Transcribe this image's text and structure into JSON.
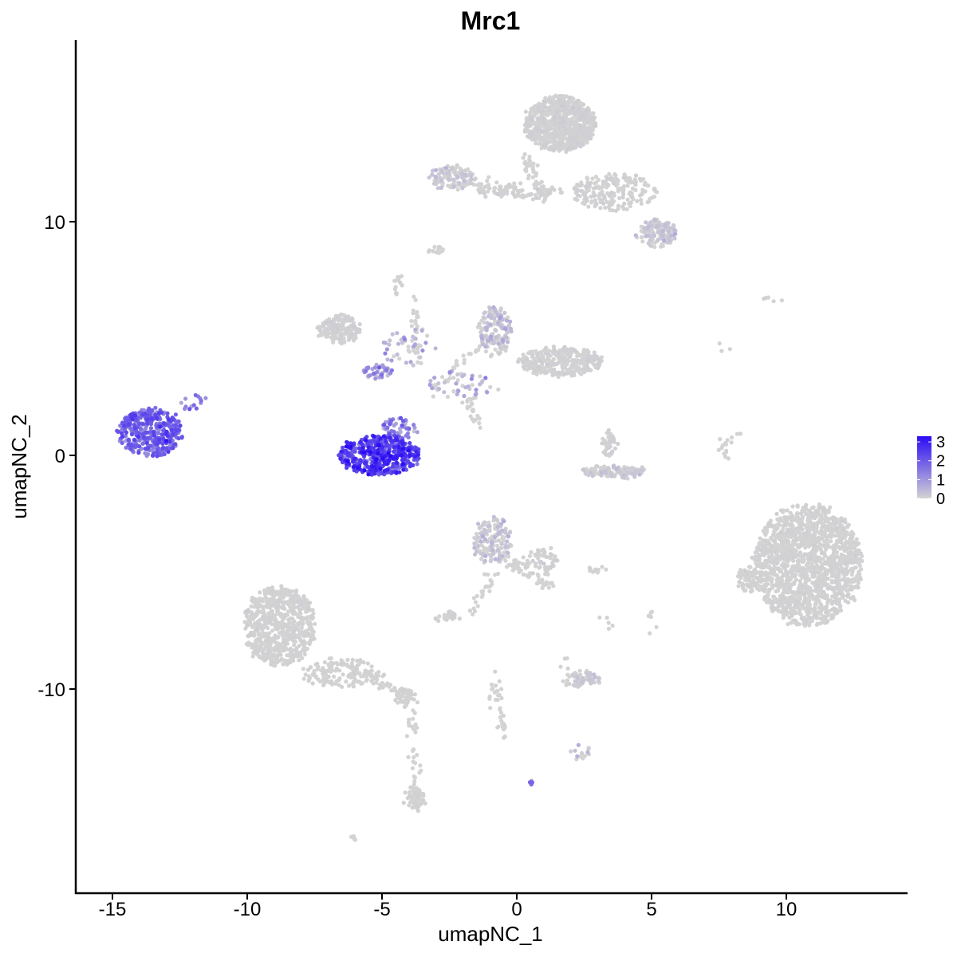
{
  "chart_data": {
    "type": "scatter",
    "title": "Mrc1",
    "xlabel": "umapNC_1",
    "ylabel": "umapNC_2",
    "xlim": [
      -16.3,
      14.6
    ],
    "ylim": [
      -17.9,
      17.5
    ],
    "xticks": [
      -15,
      -10,
      -5,
      0,
      5,
      10
    ],
    "xtick_labels": [
      "-15",
      "-10",
      "-5",
      "0",
      "5",
      "10"
    ],
    "yticks": [
      -10,
      0,
      10
    ],
    "ytick_labels": [
      "-10",
      "0",
      "10"
    ],
    "grid": false,
    "color_scale": {
      "low_color": "#d3d3d3",
      "high_color": "#2b0cf5",
      "min": 0,
      "max": 3.3,
      "ticks": [
        0,
        1,
        2,
        3
      ],
      "tick_labels": [
        "0",
        "1",
        "2",
        "3"
      ],
      "legend_position": "right"
    },
    "clusters": [
      {
        "cx": -13.6,
        "cy": 1.0,
        "rx": 1.2,
        "ry": 1.0,
        "n": 420,
        "expr_mean": 1.7,
        "expr_sd": 0.45
      },
      {
        "cx": -12.0,
        "cy": 2.3,
        "rx": 0.5,
        "ry": 0.4,
        "n": 14,
        "expr_mean": 1.3,
        "expr_sd": 0.4
      },
      {
        "cx": -5.1,
        "cy": 0.0,
        "rx": 1.5,
        "ry": 0.85,
        "n": 460,
        "expr_mean": 2.3,
        "expr_sd": 0.5
      },
      {
        "cx": -4.4,
        "cy": 1.1,
        "rx": 0.7,
        "ry": 0.5,
        "n": 60,
        "expr_mean": 1.3,
        "expr_sd": 0.5
      },
      {
        "cx": 1.6,
        "cy": 14.2,
        "rx": 1.3,
        "ry": 1.2,
        "n": 800,
        "expr_mean": 0,
        "expr_sd": 0.05
      },
      {
        "cx": 3.6,
        "cy": 11.3,
        "rx": 1.6,
        "ry": 0.8,
        "n": 200,
        "expr_mean": 0,
        "expr_sd": 0.05
      },
      {
        "cx": 5.2,
        "cy": 9.5,
        "rx": 0.7,
        "ry": 0.6,
        "n": 140,
        "expr_mean": 0.05,
        "expr_sd": 0.2
      },
      {
        "cx": -2.4,
        "cy": 11.9,
        "rx": 0.8,
        "ry": 0.5,
        "n": 110,
        "expr_mean": 0.05,
        "expr_sd": 0.2
      },
      {
        "cx": 0.2,
        "cy": 11.3,
        "rx": 1.7,
        "ry": 0.3,
        "n": 70,
        "expr_mean": 0,
        "expr_sd": 0.05
      },
      {
        "cx": -6.6,
        "cy": 5.4,
        "rx": 0.8,
        "ry": 0.6,
        "n": 160,
        "expr_mean": 0,
        "expr_sd": 0.05
      },
      {
        "cx": -5.2,
        "cy": 3.6,
        "rx": 0.6,
        "ry": 0.3,
        "n": 40,
        "expr_mean": 0.8,
        "expr_sd": 0.5
      },
      {
        "cx": -4.0,
        "cy": 4.6,
        "rx": 1.0,
        "ry": 0.9,
        "n": 40,
        "expr_mean": 0.4,
        "expr_sd": 0.4
      },
      {
        "cx": -0.8,
        "cy": 5.3,
        "rx": 0.6,
        "ry": 1.0,
        "n": 160,
        "expr_mean": 0.1,
        "expr_sd": 0.3
      },
      {
        "cx": 1.6,
        "cy": 4.0,
        "rx": 1.6,
        "ry": 0.6,
        "n": 320,
        "expr_mean": 0,
        "expr_sd": 0.05
      },
      {
        "cx": -2.0,
        "cy": 3.0,
        "rx": 1.3,
        "ry": 0.6,
        "n": 40,
        "expr_mean": 0.5,
        "expr_sd": 0.5
      },
      {
        "cx": 3.4,
        "cy": 0.5,
        "rx": 0.3,
        "ry": 0.6,
        "n": 40,
        "expr_mean": 0,
        "expr_sd": 0.05
      },
      {
        "cx": 3.6,
        "cy": -0.7,
        "rx": 1.2,
        "ry": 0.25,
        "n": 120,
        "expr_mean": 0.03,
        "expr_sd": 0.15
      },
      {
        "cx": 10.8,
        "cy": -4.7,
        "rx": 2.0,
        "ry": 2.6,
        "n": 1600,
        "expr_mean": 0,
        "expr_sd": 0.03
      },
      {
        "cx": 8.6,
        "cy": -5.3,
        "rx": 0.4,
        "ry": 0.5,
        "n": 60,
        "expr_mean": 0,
        "expr_sd": 0.03
      },
      {
        "cx": -0.9,
        "cy": -3.6,
        "rx": 0.7,
        "ry": 1.0,
        "n": 150,
        "expr_mean": 0.08,
        "expr_sd": 0.25
      },
      {
        "cx": 0.9,
        "cy": -4.5,
        "rx": 0.6,
        "ry": 0.6,
        "n": 60,
        "expr_mean": 0,
        "expr_sd": 0.05
      },
      {
        "cx": -8.8,
        "cy": -7.3,
        "rx": 1.3,
        "ry": 1.7,
        "n": 650,
        "expr_mean": 0,
        "expr_sd": 0.03
      },
      {
        "cx": -6.5,
        "cy": -9.3,
        "rx": 1.5,
        "ry": 0.6,
        "n": 150,
        "expr_mean": 0,
        "expr_sd": 0.03
      },
      {
        "cx": -4.2,
        "cy": -10.3,
        "rx": 0.4,
        "ry": 0.3,
        "n": 40,
        "expr_mean": 0,
        "expr_sd": 0.03
      },
      {
        "cx": -3.8,
        "cy": -14.7,
        "rx": 0.4,
        "ry": 0.5,
        "n": 40,
        "expr_mean": 0,
        "expr_sd": 0.03
      },
      {
        "cx": 2.4,
        "cy": -9.6,
        "rx": 0.7,
        "ry": 0.3,
        "n": 80,
        "expr_mean": 0.03,
        "expr_sd": 0.12
      },
      {
        "cx": 2.3,
        "cy": -12.7,
        "rx": 0.4,
        "ry": 0.3,
        "n": 14,
        "expr_mean": 0.1,
        "expr_sd": 0.3
      },
      {
        "cx": -2.6,
        "cy": -6.9,
        "rx": 0.5,
        "ry": 0.2,
        "n": 30,
        "expr_mean": 0,
        "expr_sd": 0.05
      },
      {
        "cx": 2.9,
        "cy": -4.9,
        "rx": 0.4,
        "ry": 0.1,
        "n": 10,
        "expr_mean": 0,
        "expr_sd": 0.03
      },
      {
        "cx": 0.6,
        "cy": -14.0,
        "rx": 0.1,
        "ry": 0.1,
        "n": 5,
        "expr_mean": 1.5,
        "expr_sd": 0.3
      },
      {
        "cx": -6.1,
        "cy": -16.4,
        "rx": 0.15,
        "ry": 0.1,
        "n": 5,
        "expr_mean": 0,
        "expr_sd": 0.03
      },
      {
        "cx": -3.0,
        "cy": 8.8,
        "rx": 0.3,
        "ry": 0.2,
        "n": 12,
        "expr_mean": 0,
        "expr_sd": 0.03
      },
      {
        "cx": -4.4,
        "cy": 7.3,
        "rx": 0.2,
        "ry": 0.4,
        "n": 14,
        "expr_mean": 0,
        "expr_sd": 0.03
      },
      {
        "cx": 9.5,
        "cy": 6.7,
        "rx": 0.4,
        "ry": 0.1,
        "n": 5,
        "expr_mean": 0,
        "expr_sd": 0.03
      }
    ],
    "paths": [
      {
        "x0": 0.3,
        "y0": 12.8,
        "x1": 1.1,
        "y1": 11.0,
        "n": 50
      },
      {
        "x0": 0.8,
        "y0": 11.1,
        "x1": -2.0,
        "y1": 11.8,
        "n": 50
      },
      {
        "x0": -3.9,
        "y0": 6.9,
        "x1": -3.6,
        "y1": 4.0,
        "n": 30
      },
      {
        "x0": -1.9,
        "y0": 2.6,
        "x1": -1.4,
        "y1": 1.1,
        "n": 25
      },
      {
        "x0": -3.0,
        "y0": 2.8,
        "x1": -1.3,
        "y1": 4.8,
        "n": 30
      },
      {
        "x0": -0.6,
        "y0": -4.3,
        "x1": 1.1,
        "y1": -5.6,
        "n": 60
      },
      {
        "x0": -0.8,
        "y0": -4.8,
        "x1": -1.6,
        "y1": -6.8,
        "n": 25
      },
      {
        "x0": -5.6,
        "y0": -9.4,
        "x1": -3.9,
        "y1": -10.5,
        "n": 40
      },
      {
        "x0": -3.9,
        "y0": -10.6,
        "x1": -3.7,
        "y1": -15.1,
        "n": 45
      },
      {
        "x0": -0.9,
        "y0": -9.4,
        "x1": -0.5,
        "y1": -12.2,
        "n": 35
      },
      {
        "x0": 7.8,
        "y0": -0.1,
        "x1": 7.6,
        "y1": 0.8,
        "n": 12
      },
      {
        "x0": 8.1,
        "y0": 0.9,
        "x1": 8.0,
        "y1": 0.4,
        "n": 4
      },
      {
        "x0": 5.0,
        "y0": -6.7,
        "x1": 5.1,
        "y1": -7.6,
        "n": 6
      },
      {
        "x0": 3.3,
        "y0": -7.0,
        "x1": 3.5,
        "y1": -7.6,
        "n": 5
      },
      {
        "x0": 7.6,
        "y0": 4.9,
        "x1": 7.8,
        "y1": 4.6,
        "n": 3
      },
      {
        "x0": 1.8,
        "y0": -8.8,
        "x1": 2.0,
        "y1": -9.0,
        "n": 4
      }
    ]
  }
}
